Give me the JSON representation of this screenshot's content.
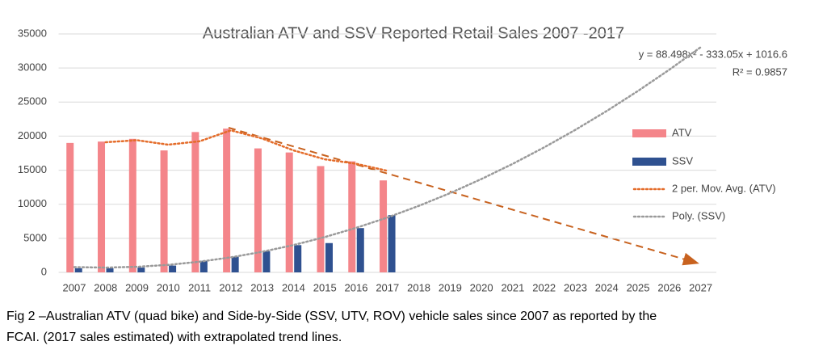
{
  "chart_data": {
    "type": "bar",
    "title": "Australian ATV and SSV Reported Retail Sales 2007 -2017",
    "annotations": [
      "y = 88.498x² - 333.05x + 1016.6",
      "R² = 0.9857"
    ],
    "categories": [
      "2007",
      "2008",
      "2009",
      "2010",
      "2011",
      "2012",
      "2013",
      "2014",
      "2015",
      "2016",
      "2017",
      "2018",
      "2019",
      "2020",
      "2021",
      "2022",
      "2023",
      "2024",
      "2025",
      "2026",
      "2027"
    ],
    "series": [
      {
        "name": "ATV",
        "color": "#f4858a",
        "kind": "bar",
        "values": [
          19000,
          19200,
          19600,
          17900,
          20600,
          21100,
          18200,
          17600,
          15600,
          16300,
          13500,
          null,
          null,
          null,
          null,
          null,
          null,
          null,
          null,
          null,
          null
        ]
      },
      {
        "name": "SSV",
        "color": "#2f5190",
        "kind": "bar",
        "values": [
          600,
          600,
          700,
          1000,
          1700,
          2300,
          3100,
          4000,
          4300,
          6500,
          8400,
          null,
          null,
          null,
          null,
          null,
          null,
          null,
          null,
          null,
          null
        ]
      },
      {
        "name": "2 per. Mov. Avg. (ATV)",
        "color": "#e46c2a",
        "kind": "line",
        "values": [
          null,
          19100,
          19400,
          18750,
          19250,
          20850,
          19650,
          17900,
          16600,
          15950,
          14900,
          null,
          null,
          null,
          null,
          null,
          null,
          null,
          null,
          null,
          null
        ]
      },
      {
        "name": "Poly. (SSV)",
        "color": "#9a9a9a",
        "kind": "line",
        "values": [
          772,
          705,
          814,
          1100,
          1564,
          2204,
          3022,
          4016,
          5188,
          6536,
          8061,
          9764,
          11643,
          13700,
          15933,
          18343,
          20931,
          23695,
          26636,
          29755,
          33050
        ]
      }
    ],
    "ylim": [
      0,
      35000
    ],
    "yticks": [
      0,
      5000,
      10000,
      15000,
      20000,
      25000,
      30000,
      35000
    ],
    "grid": true,
    "legend": "right",
    "caption": [
      "Fig 2 –Australian ATV (quad bike) and Side-by-Side (SSV, UTV, ROV) vehicle sales since 2007 as reported by the",
      "FCAI. (2017 sales estimated) with extrapolated trend lines."
    ]
  }
}
